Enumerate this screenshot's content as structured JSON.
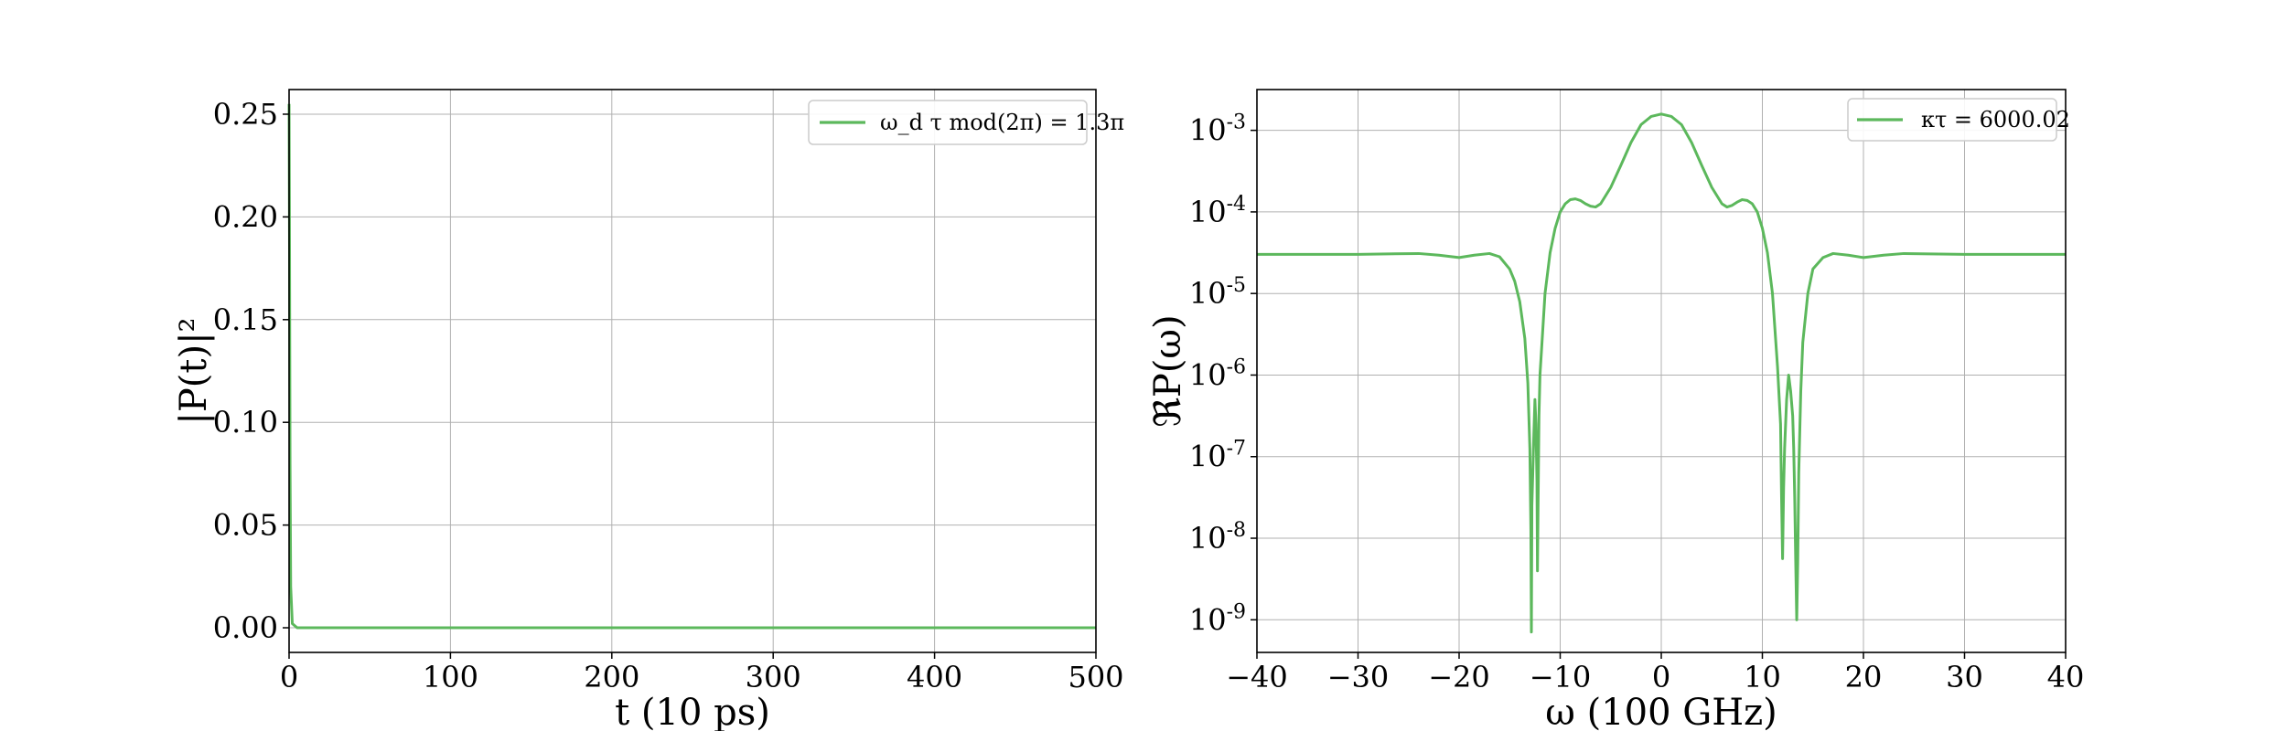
{
  "chart_data": [
    {
      "type": "line",
      "xlabel": "t (10 ps)",
      "ylabel": "|P(t)|²",
      "xlim": [
        0,
        500
      ],
      "ylim": [
        -0.012,
        0.262
      ],
      "x_ticks": [
        0,
        100,
        200,
        300,
        400,
        500
      ],
      "x_tick_labels": [
        "0",
        "100",
        "200",
        "300",
        "400",
        "500"
      ],
      "y_ticks": [
        0.0,
        0.05,
        0.1,
        0.15,
        0.2,
        0.25
      ],
      "y_tick_labels": [
        "0.00",
        "0.05",
        "0.10",
        "0.15",
        "0.20",
        "0.25"
      ],
      "grid": true,
      "legend_position": "top-right",
      "series": [
        {
          "name": "ω_d τ mod(2π) = 1.3π",
          "color": "#5cb85c",
          "x": [
            0,
            0.3,
            0.6,
            1,
            2,
            5,
            10,
            50,
            100,
            200,
            300,
            400,
            500
          ],
          "y": [
            0.255,
            0.18,
            0.08,
            0.02,
            0.002,
            0,
            0,
            0,
            0,
            0,
            0,
            0,
            0
          ]
        }
      ]
    },
    {
      "type": "line",
      "xlabel": "ω (100 GHz)",
      "ylabel": "ℜP(ω)",
      "xlim": [
        -40,
        40
      ],
      "ylim_log10": [
        -9.4,
        -2.5
      ],
      "yscale": "log",
      "x_ticks": [
        -40,
        -30,
        -20,
        -10,
        0,
        10,
        20,
        30,
        40
      ],
      "x_tick_labels": [
        "−40",
        "−30",
        "−20",
        "−10",
        "0",
        "10",
        "20",
        "30",
        "40"
      ],
      "y_ticks_log10": [
        -9,
        -8,
        -7,
        -6,
        -5,
        -4,
        -3
      ],
      "y_tick_base": [
        "10",
        "10",
        "10",
        "10",
        "10",
        "10",
        "10"
      ],
      "y_tick_exp": [
        "-9",
        "-8",
        "-7",
        "-6",
        "-5",
        "-4",
        "-3"
      ],
      "grid": true,
      "legend_position": "top-right",
      "series": [
        {
          "name": "κτ = 6000.02",
          "color": "#5cb85c",
          "x": [
            -40,
            -30,
            -24,
            -22,
            -20,
            -18.5,
            -17,
            -16,
            -15,
            -14.5,
            -14,
            -13.5,
            -13.2,
            -13,
            -12.9,
            -12.85,
            -12.8,
            -12.6,
            -12.5,
            -12.4,
            -12.3,
            -12.25,
            -12.1,
            -12,
            -11.5,
            -11,
            -10.5,
            -10,
            -9.5,
            -9,
            -8.5,
            -8,
            -7.5,
            -7,
            -6.5,
            -6,
            -5,
            -4,
            -3,
            -2,
            -1,
            0,
            1,
            2,
            3,
            4,
            5,
            6,
            6.5,
            7,
            7.5,
            8,
            8.5,
            9,
            9.5,
            10,
            10.5,
            11,
            11.5,
            11.8,
            11.9,
            12,
            12.1,
            12.2,
            12.4,
            12.6,
            12.8,
            13,
            13.1,
            13.2,
            13.3,
            13.4,
            13.5,
            13.6,
            13.8,
            14,
            14.5,
            15,
            16,
            17,
            18.5,
            20,
            22,
            24,
            30,
            40
          ],
          "y_log10": [
            -4.52,
            -4.52,
            -4.51,
            -4.53,
            -4.56,
            -4.53,
            -4.51,
            -4.55,
            -4.7,
            -4.85,
            -5.1,
            -5.55,
            -6.1,
            -6.9,
            -7.9,
            -9.15,
            -7.6,
            -6.7,
            -6.3,
            -6.6,
            -7.3,
            -8.4,
            -6.5,
            -6.0,
            -5.0,
            -4.5,
            -4.2,
            -4.0,
            -3.9,
            -3.85,
            -3.84,
            -3.86,
            -3.9,
            -3.93,
            -3.94,
            -3.9,
            -3.7,
            -3.43,
            -3.15,
            -2.93,
            -2.83,
            -2.8,
            -2.83,
            -2.93,
            -3.15,
            -3.43,
            -3.7,
            -3.9,
            -3.94,
            -3.92,
            -3.88,
            -3.85,
            -3.86,
            -3.9,
            -4.0,
            -4.2,
            -4.5,
            -5.0,
            -5.9,
            -6.6,
            -7.5,
            -8.25,
            -7.4,
            -6.9,
            -6.3,
            -6.0,
            -6.2,
            -6.5,
            -6.9,
            -7.5,
            -8.3,
            -9.0,
            -8.3,
            -7.2,
            -6.2,
            -5.6,
            -5.0,
            -4.7,
            -4.56,
            -4.51,
            -4.53,
            -4.56,
            -4.53,
            -4.51,
            -4.52,
            -4.52
          ]
        }
      ]
    }
  ]
}
